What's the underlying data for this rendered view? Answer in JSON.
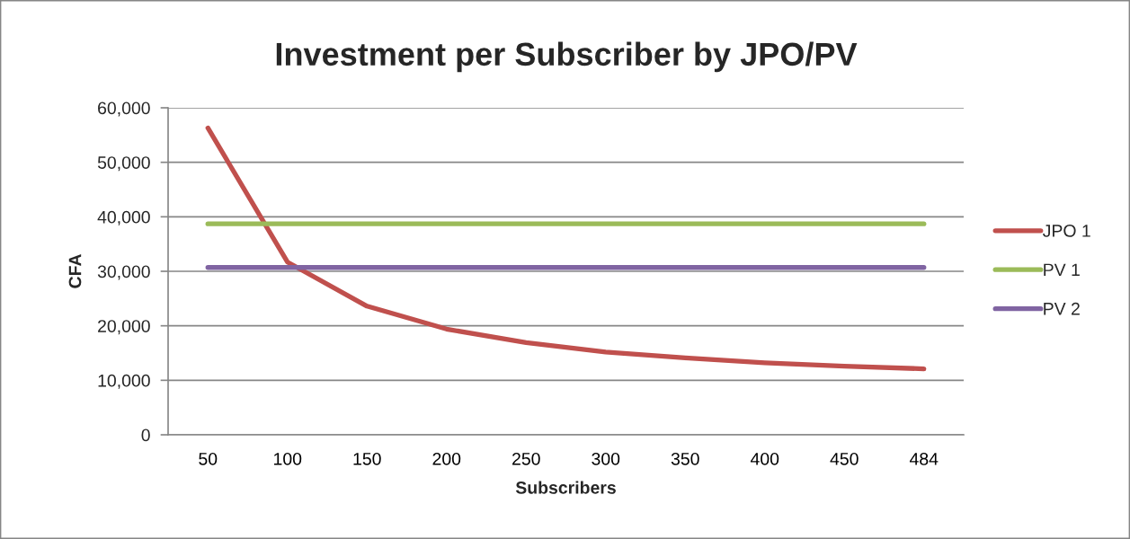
{
  "chart_data": {
    "type": "line",
    "title": "Investment per Subscriber by JPO/PV",
    "xlabel": "Subscribers",
    "ylabel": "CFA",
    "categories": [
      "50",
      "100",
      "150",
      "200",
      "250",
      "300",
      "350",
      "400",
      "450",
      "484"
    ],
    "series": [
      {
        "name": "JPO 1",
        "color": "#c0504d",
        "values": [
          56300,
          31700,
          23600,
          19400,
          16900,
          15200,
          14100,
          13200,
          12600,
          12100
        ]
      },
      {
        "name": "PV 1",
        "color": "#9bbb59",
        "values": [
          38700,
          38700,
          38700,
          38700,
          38700,
          38700,
          38700,
          38700,
          38700,
          38700
        ]
      },
      {
        "name": "PV 2",
        "color": "#8064a2",
        "values": [
          30700,
          30700,
          30700,
          30700,
          30700,
          30700,
          30700,
          30700,
          30700,
          30700
        ]
      }
    ],
    "ylim": [
      0,
      60000
    ],
    "yticks": [
      0,
      {
        "value": 10000,
        "label": "10,000"
      },
      {
        "value": 20000,
        "label": "20,000"
      },
      {
        "value": 30000,
        "label": "30,000"
      },
      {
        "value": 40000,
        "label": "40,000"
      },
      {
        "value": 50000,
        "label": "50,000"
      },
      {
        "value": 60000,
        "label": "60,000"
      }
    ],
    "grid": "y",
    "legend": "right",
    "marker": "none",
    "line_style": "solid"
  }
}
